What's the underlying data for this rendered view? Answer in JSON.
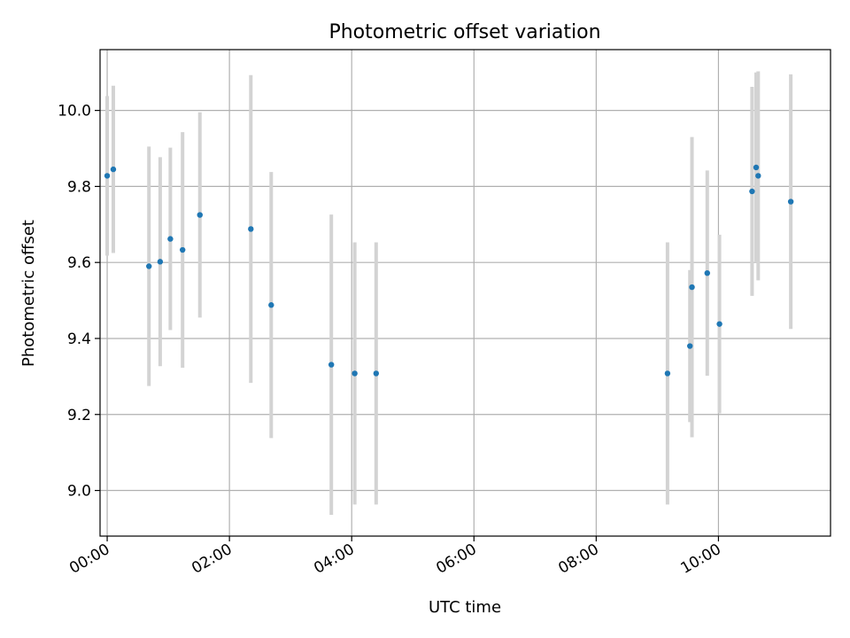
{
  "chart_data": {
    "type": "scatter",
    "title": "Photometric offset variation",
    "xlabel": "UTC time",
    "ylabel": "Photometric offset",
    "x_ticks": [
      "00:00",
      "02:00",
      "04:00",
      "06:00",
      "08:00",
      "10:00"
    ],
    "y_ticks": [
      "9.0",
      "9.2",
      "9.4",
      "9.6",
      "9.8",
      "10.0"
    ],
    "xlim": [
      "-00:07",
      "11:50"
    ],
    "ylim": [
      8.88,
      10.16
    ],
    "grid": true,
    "colors": {
      "point": "#1f77b4",
      "errorbar": "#d3d3d3",
      "grid": "#b0b0b0"
    },
    "series": [
      {
        "points": [
          {
            "x": "00:00",
            "y": 9.828,
            "err": 0.21
          },
          {
            "x": "00:06",
            "y": 9.845,
            "err": 0.22
          },
          {
            "x": "00:41",
            "y": 9.59,
            "err": 0.315
          },
          {
            "x": "00:52",
            "y": 9.602,
            "err": 0.275
          },
          {
            "x": "01:02",
            "y": 9.662,
            "err": 0.24
          },
          {
            "x": "01:14",
            "y": 9.633,
            "err": 0.31
          },
          {
            "x": "01:31",
            "y": 9.725,
            "err": 0.27
          },
          {
            "x": "02:21",
            "y": 9.688,
            "err": 0.405
          },
          {
            "x": "02:41",
            "y": 9.488,
            "err": 0.35
          },
          {
            "x": "03:40",
            "y": 9.331,
            "err": 0.395
          },
          {
            "x": "04:03",
            "y": 9.308,
            "err": 0.345
          },
          {
            "x": "04:24",
            "y": 9.308,
            "err": 0.345
          },
          {
            "x": "09:10",
            "y": 9.308,
            "err": 0.345
          },
          {
            "x": "09:32",
            "y": 9.38,
            "err": 0.2
          },
          {
            "x": "09:34",
            "y": 9.535,
            "err": 0.395
          },
          {
            "x": "09:49",
            "y": 9.572,
            "err": 0.27
          },
          {
            "x": "10:01",
            "y": 9.438,
            "err": 0.235
          },
          {
            "x": "10:33",
            "y": 9.787,
            "err": 0.275
          },
          {
            "x": "10:37",
            "y": 9.85,
            "err": 0.25
          },
          {
            "x": "10:39",
            "y": 9.828,
            "err": 0.275
          },
          {
            "x": "11:11",
            "y": 9.76,
            "err": 0.335
          }
        ]
      }
    ]
  }
}
